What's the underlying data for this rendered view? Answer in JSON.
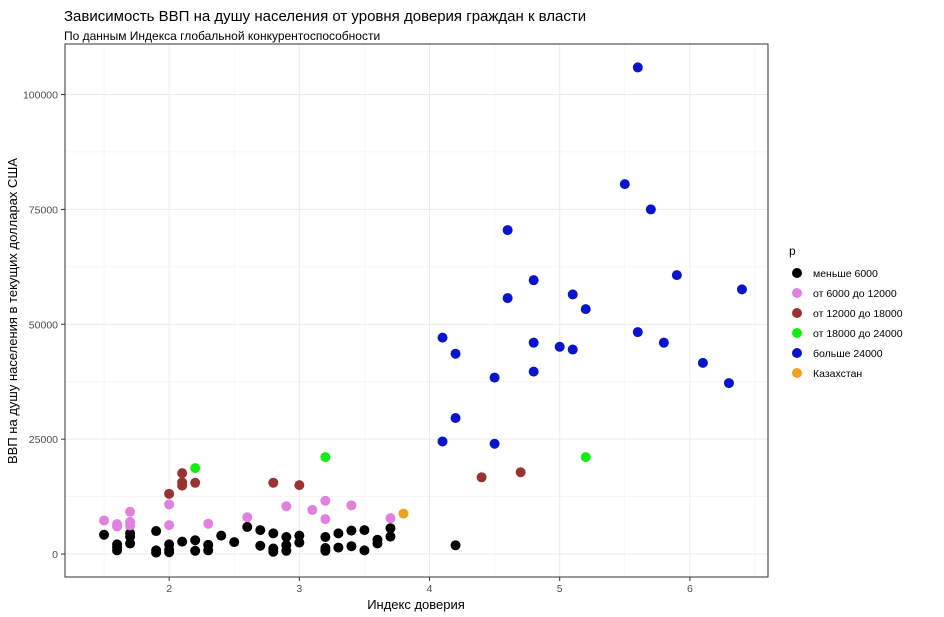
{
  "chart_data": {
    "type": "scatter",
    "title": "Зависимость ВВП на душу населения от уровня доверия граждан к власти",
    "subtitle": "По данным Индекса глобальной конкурентоспособности",
    "xlabel": "Индекс доверия",
    "ylabel": "ВВП на душу населения в текущих долларах США",
    "xlim": [
      1.2,
      6.6
    ],
    "ylim": [
      -5000,
      111000
    ],
    "x_ticks": [
      2,
      3,
      4,
      5,
      6
    ],
    "y_ticks": [
      0,
      25000,
      50000,
      75000,
      100000
    ],
    "y_tick_labels": [
      "0",
      "25000",
      "50000",
      "75000",
      "100000"
    ],
    "grid": true,
    "legend": {
      "title": "p",
      "position": "right"
    },
    "series": [
      {
        "name": "меньше 6000",
        "color": "#000000",
        "points": [
          [
            1.5,
            4200
          ],
          [
            1.6,
            800
          ],
          [
            1.6,
            1500
          ],
          [
            1.6,
            2100
          ],
          [
            1.7,
            2300
          ],
          [
            1.7,
            3800
          ],
          [
            1.7,
            4500
          ],
          [
            1.9,
            300
          ],
          [
            1.9,
            800
          ],
          [
            1.9,
            5000
          ],
          [
            2.0,
            400
          ],
          [
            2.0,
            900
          ],
          [
            2.0,
            2100
          ],
          [
            2.1,
            2700
          ],
          [
            2.2,
            700
          ],
          [
            2.2,
            3000
          ],
          [
            2.3,
            800
          ],
          [
            2.3,
            2000
          ],
          [
            2.4,
            4000
          ],
          [
            2.5,
            2600
          ],
          [
            2.6,
            5900
          ],
          [
            2.7,
            5200
          ],
          [
            2.7,
            1800
          ],
          [
            2.8,
            500
          ],
          [
            2.8,
            1200
          ],
          [
            2.8,
            4500
          ],
          [
            2.9,
            700
          ],
          [
            2.9,
            1900
          ],
          [
            2.9,
            3700
          ],
          [
            3.0,
            2500
          ],
          [
            3.0,
            4000
          ],
          [
            3.2,
            700
          ],
          [
            3.2,
            1300
          ],
          [
            3.2,
            3700
          ],
          [
            3.3,
            1400
          ],
          [
            3.3,
            4500
          ],
          [
            3.4,
            1700
          ],
          [
            3.4,
            5100
          ],
          [
            3.5,
            800
          ],
          [
            3.5,
            5200
          ],
          [
            3.6,
            2300
          ],
          [
            3.6,
            3100
          ],
          [
            3.7,
            3800
          ],
          [
            3.7,
            5600
          ],
          [
            4.2,
            1900
          ]
        ]
      },
      {
        "name": "от 6000 до 12000",
        "color": "#e080e0",
        "points": [
          [
            1.5,
            7300
          ],
          [
            1.6,
            6500
          ],
          [
            1.6,
            6000
          ],
          [
            1.7,
            7000
          ],
          [
            1.7,
            6200
          ],
          [
            1.7,
            9200
          ],
          [
            2.0,
            10800
          ],
          [
            2.0,
            6300
          ],
          [
            2.3,
            6600
          ],
          [
            2.6,
            8000
          ],
          [
            2.9,
            10400
          ],
          [
            3.1,
            9600
          ],
          [
            3.2,
            11600
          ],
          [
            3.2,
            7600
          ],
          [
            3.4,
            10600
          ],
          [
            3.7,
            7800
          ]
        ]
      },
      {
        "name": "от 12000 до 18000",
        "color": "#993333",
        "points": [
          [
            2.0,
            13100
          ],
          [
            2.1,
            17600
          ],
          [
            2.1,
            15600
          ],
          [
            2.1,
            14900
          ],
          [
            2.2,
            15500
          ],
          [
            2.8,
            15500
          ],
          [
            3.0,
            15000
          ],
          [
            4.4,
            16700
          ],
          [
            4.7,
            17800
          ]
        ]
      },
      {
        "name": "от 18000 до 24000",
        "color": "#11ee11",
        "points": [
          [
            2.2,
            18700
          ],
          [
            3.2,
            21100
          ],
          [
            5.2,
            21100
          ]
        ]
      },
      {
        "name": "больше 24000",
        "color": "#0a14cc",
        "points": [
          [
            4.1,
            47100
          ],
          [
            4.1,
            24500
          ],
          [
            4.2,
            43600
          ],
          [
            4.2,
            29600
          ],
          [
            4.5,
            38400
          ],
          [
            4.5,
            24000
          ],
          [
            4.6,
            70500
          ],
          [
            4.6,
            55700
          ],
          [
            4.8,
            59600
          ],
          [
            4.8,
            46000
          ],
          [
            4.8,
            39700
          ],
          [
            5.0,
            45100
          ],
          [
            5.1,
            56500
          ],
          [
            5.1,
            44500
          ],
          [
            5.2,
            53300
          ],
          [
            5.5,
            80500
          ],
          [
            5.6,
            105900
          ],
          [
            5.6,
            48300
          ],
          [
            5.7,
            75000
          ],
          [
            5.8,
            46000
          ],
          [
            5.9,
            60700
          ],
          [
            6.1,
            41600
          ],
          [
            6.3,
            37200
          ],
          [
            6.4,
            57600
          ]
        ]
      },
      {
        "name": "Казахстан",
        "color": "#eea020",
        "points": [
          [
            3.8,
            8800
          ]
        ]
      }
    ]
  }
}
